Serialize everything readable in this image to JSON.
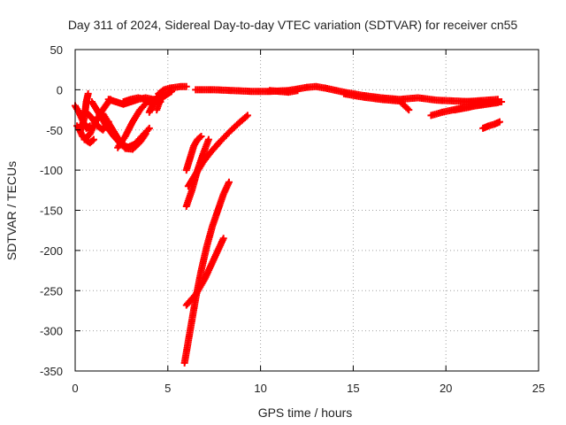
{
  "chart_data": {
    "type": "scatter",
    "title": "Day 311 of 2024, Sidereal Day-to-day VTEC variation (SDTVAR) for receiver cn55",
    "xlabel": "GPS time / hours",
    "ylabel": "SDTVAR / TECUs",
    "xlim": [
      0,
      25
    ],
    "ylim": [
      -350,
      50
    ],
    "xticks": [
      0,
      5,
      10,
      15,
      20,
      25
    ],
    "yticks": [
      50,
      0,
      -50,
      -100,
      -150,
      -200,
      -250,
      -300,
      -350
    ],
    "grid": true,
    "legend": "none",
    "marker": "plus",
    "color": "#ff0000",
    "series": [
      {
        "x": [
          0.0,
          0.2,
          0.4,
          0.6,
          0.8
        ],
        "y": [
          -20,
          -28,
          -38,
          -48,
          -45
        ]
      },
      {
        "x": [
          0.1,
          0.3,
          0.5,
          0.6,
          0.7
        ],
        "y": [
          -45,
          -50,
          -35,
          -15,
          -5
        ]
      },
      {
        "x": [
          0.3,
          0.6,
          0.9,
          1.2,
          1.5,
          1.8
        ],
        "y": [
          -30,
          -28,
          -35,
          -45,
          -50,
          -40
        ]
      },
      {
        "x": [
          0.5,
          0.8,
          1.1,
          1.4,
          1.7,
          1.9
        ],
        "y": [
          -62,
          -55,
          -40,
          -28,
          -18,
          -12
        ]
      },
      {
        "x": [
          0.2,
          0.4,
          0.6,
          0.8,
          1.0
        ],
        "y": [
          -48,
          -58,
          -63,
          -66,
          -62
        ]
      },
      {
        "x": [
          0.9,
          1.3,
          1.7,
          2.1,
          2.5,
          2.9
        ],
        "y": [
          -15,
          -30,
          -45,
          -58,
          -68,
          -72
        ]
      },
      {
        "x": [
          1.2,
          1.6,
          2.0,
          2.4,
          2.8,
          3.2,
          3.6,
          4.0
        ],
        "y": [
          -25,
          -42,
          -55,
          -66,
          -72,
          -68,
          -58,
          -48
        ]
      },
      {
        "x": [
          1.5,
          1.9,
          2.3,
          2.7,
          3.1,
          3.5,
          3.8
        ],
        "y": [
          -30,
          -45,
          -60,
          -73,
          -74,
          -65,
          -55
        ]
      },
      {
        "x": [
          2.3,
          2.7,
          3.1,
          3.5,
          3.9,
          4.3
        ],
        "y": [
          -72,
          -58,
          -40,
          -25,
          -15,
          -12
        ]
      },
      {
        "x": [
          1.8,
          2.2,
          2.6,
          3.0,
          3.4,
          3.8,
          4.2,
          4.6
        ],
        "y": [
          -12,
          -15,
          -18,
          -15,
          -12,
          -10,
          -12,
          -15
        ]
      },
      {
        "x": [
          2.6,
          3.0,
          3.4,
          3.8,
          4.2,
          4.5
        ],
        "y": [
          -15,
          -12,
          -10,
          -12,
          -14,
          -12
        ]
      },
      {
        "x": [
          4.0,
          4.2,
          4.4,
          4.6
        ],
        "y": [
          -28,
          -18,
          -10,
          -5
        ]
      },
      {
        "x": [
          4.4,
          4.6,
          4.8,
          5.0,
          5.2
        ],
        "y": [
          -25,
          -12,
          -8,
          -5,
          -2
        ]
      },
      {
        "x": [
          4.5,
          4.8,
          5.1,
          5.4,
          5.7,
          6.0
        ],
        "y": [
          -5,
          0,
          2,
          3,
          4,
          4
        ]
      },
      {
        "x": [
          6.0,
          6.2,
          6.4,
          6.6,
          6.8
        ],
        "y": [
          -100,
          -85,
          -70,
          -62,
          -58
        ]
      },
      {
        "x": [
          6.0,
          6.3,
          6.6,
          6.9,
          7.2
        ],
        "y": [
          -145,
          -125,
          -100,
          -80,
          -62
        ]
      },
      {
        "x": [
          6.1,
          6.5,
          6.9,
          7.3,
          7.8,
          8.3,
          8.8,
          9.3
        ],
        "y": [
          -120,
          -105,
          -90,
          -78,
          -65,
          -53,
          -42,
          -32
        ]
      },
      {
        "x": [
          5.9,
          6.2,
          6.5,
          6.8,
          7.1,
          7.4,
          7.7,
          8.0,
          8.3
        ],
        "y": [
          -340,
          -300,
          -260,
          -225,
          -195,
          -170,
          -150,
          -130,
          -115
        ]
      },
      {
        "x": [
          6.0,
          6.5,
          7.0,
          7.5,
          8.0
        ],
        "y": [
          -268,
          -255,
          -235,
          -210,
          -185
        ]
      },
      {
        "x": [
          6.5,
          7.5,
          8.5,
          9.5,
          10.5,
          11.5,
          12.5,
          13.0,
          13.5,
          14.5,
          15.5,
          16.5,
          17.5,
          18.5,
          19.5,
          20.5,
          21.5,
          22.5,
          23.0
        ],
        "y": [
          0,
          0,
          -1,
          -2,
          -2,
          -1,
          3,
          4,
          2,
          -3,
          -7,
          -10,
          -12,
          -10,
          -13,
          -14,
          -15,
          -16,
          -15
        ]
      },
      {
        "x": [
          10.5,
          11.0,
          11.5,
          12.0
        ],
        "y": [
          -1,
          -2,
          -3,
          -1
        ]
      },
      {
        "x": [
          14.5,
          15.5,
          16.5,
          17.5,
          18.0
        ],
        "y": [
          -5,
          -9,
          -12,
          -14,
          -25
        ]
      },
      {
        "x": [
          19.2,
          19.8,
          20.4,
          21.0,
          21.6,
          22.2,
          22.8
        ],
        "y": [
          -32,
          -28,
          -25,
          -22,
          -20,
          -18,
          -16
        ]
      },
      {
        "x": [
          20.5,
          21.2,
          21.9,
          22.6
        ],
        "y": [
          -25,
          -22,
          -18,
          -15
        ]
      },
      {
        "x": [
          21.0,
          21.6,
          22.2,
          22.8
        ],
        "y": [
          -15,
          -14,
          -13,
          -12
        ]
      },
      {
        "x": [
          22.0,
          22.3,
          22.6,
          22.9
        ],
        "y": [
          -48,
          -45,
          -43,
          -40
        ]
      }
    ]
  }
}
